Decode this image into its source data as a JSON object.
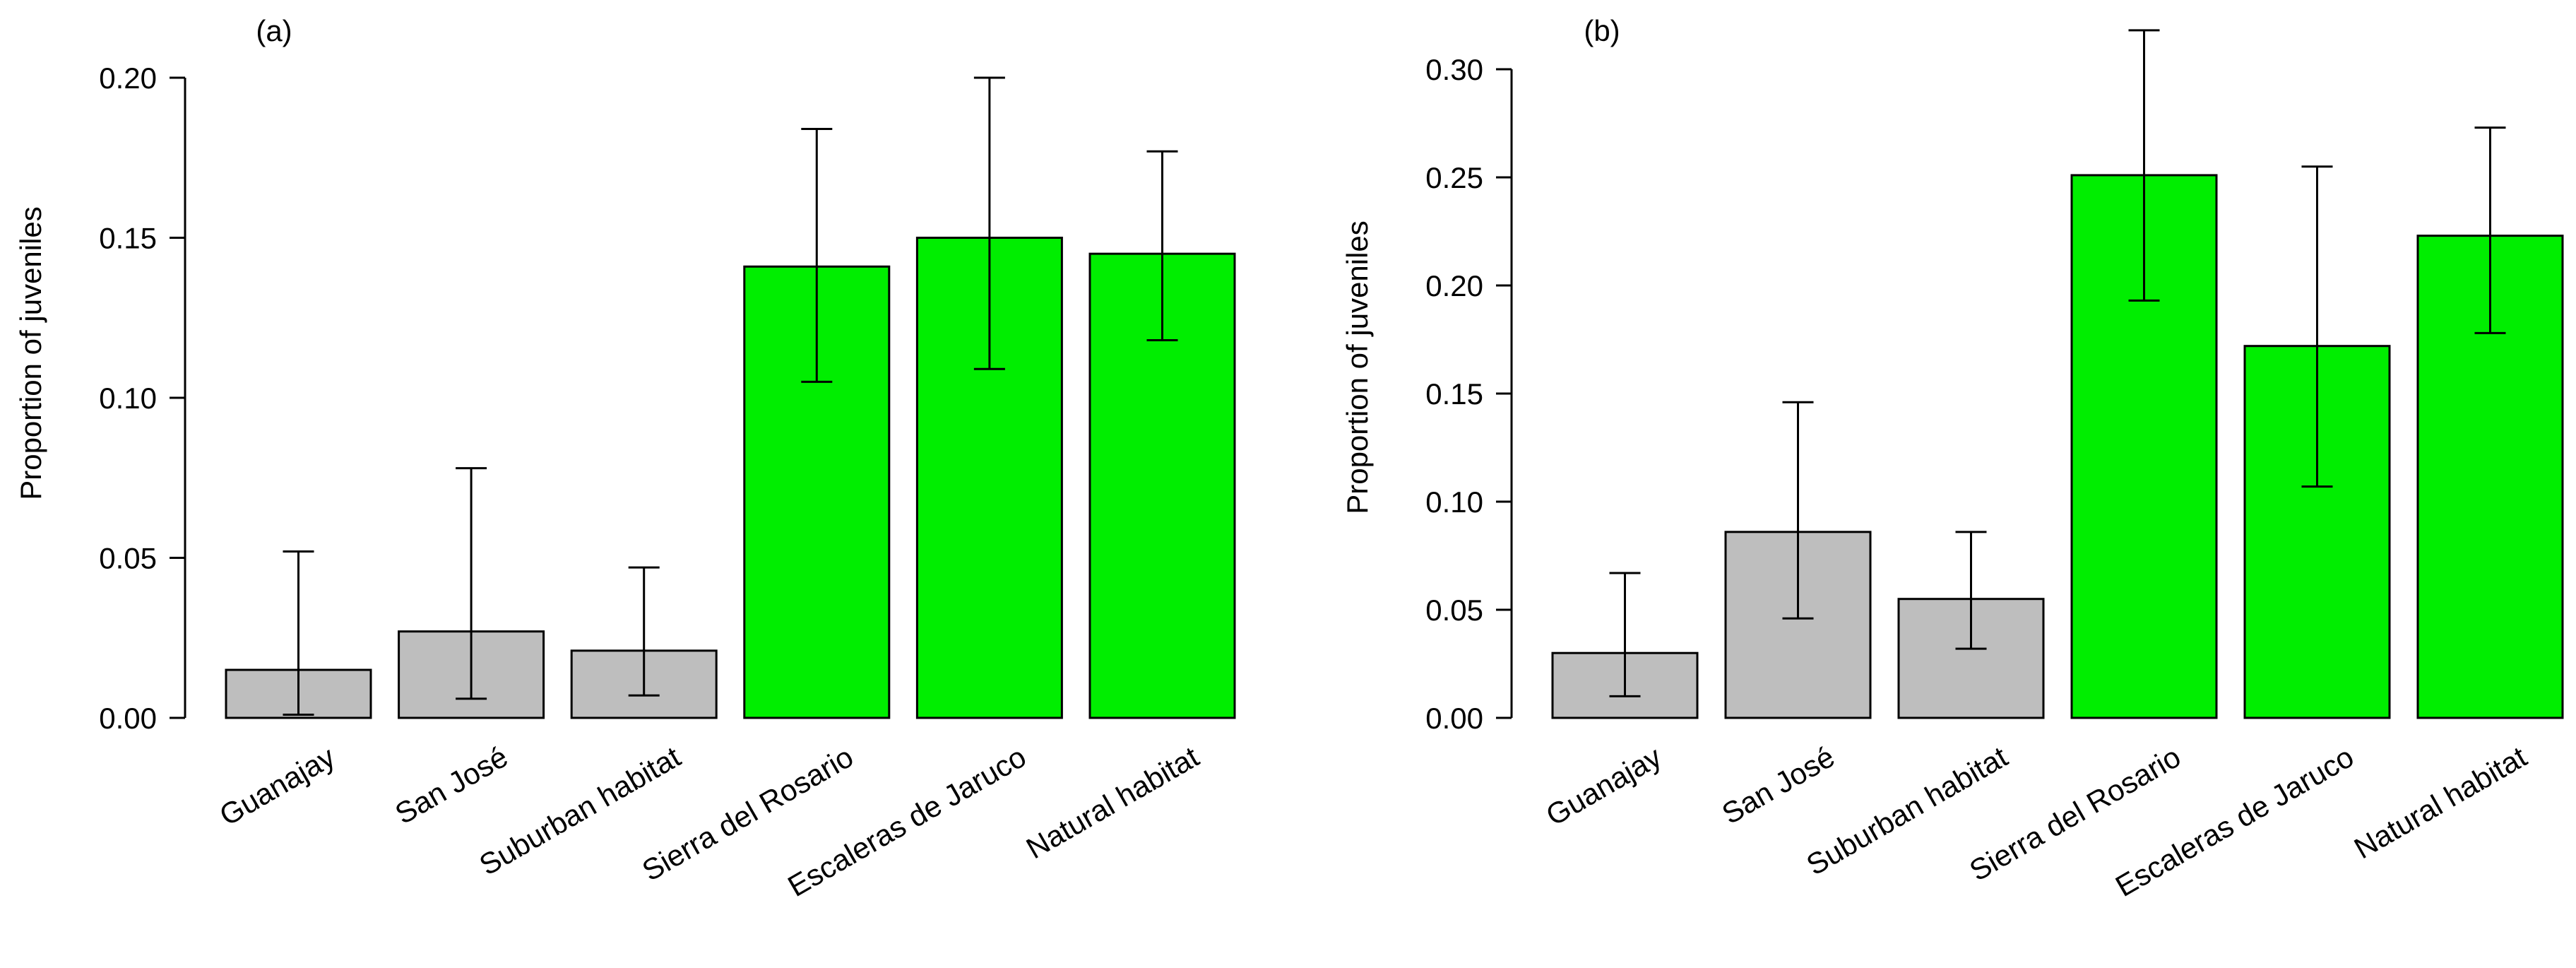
{
  "chart_data": [
    {
      "type": "bar",
      "panel_label": "(a)",
      "ylabel": "Proportion of juveniles",
      "xlabel": "",
      "ylim": [
        0,
        0.2
      ],
      "yticks": [
        "0.00",
        "0.05",
        "0.10",
        "0.15",
        "0.20"
      ],
      "categories": [
        "Guanajay",
        "San José",
        "Suburban habitat",
        "Sierra del Rosario",
        "Escaleras de Jaruco",
        "Natural habitat"
      ],
      "values": [
        0.015,
        0.027,
        0.021,
        0.141,
        0.15,
        0.145
      ],
      "error_low": [
        0.001,
        0.006,
        0.007,
        0.105,
        0.109,
        0.118
      ],
      "error_high": [
        0.052,
        0.078,
        0.047,
        0.184,
        0.2,
        0.177
      ],
      "colors": [
        "#bebebe",
        "#bebebe",
        "#bebebe",
        "#00ee00",
        "#00ee00",
        "#00ee00"
      ]
    },
    {
      "type": "bar",
      "panel_label": "(b)",
      "ylabel": "Proportion of juveniles",
      "xlabel": "",
      "ylim": [
        0,
        0.3
      ],
      "yticks": [
        "0.00",
        "0.05",
        "0.10",
        "0.15",
        "0.20",
        "0.25",
        "0.30"
      ],
      "categories": [
        "Guanajay",
        "San José",
        "Suburban habitat",
        "Sierra del Rosario",
        "Escaleras de Jaruco",
        "Natural habitat"
      ],
      "values": [
        0.03,
        0.086,
        0.055,
        0.251,
        0.172,
        0.223
      ],
      "error_low": [
        0.01,
        0.046,
        0.032,
        0.193,
        0.107,
        0.178
      ],
      "error_high": [
        0.067,
        0.146,
        0.086,
        0.318,
        0.255,
        0.273
      ],
      "colors": [
        "#bebebe",
        "#bebebe",
        "#bebebe",
        "#00ee00",
        "#00ee00",
        "#00ee00"
      ]
    }
  ]
}
